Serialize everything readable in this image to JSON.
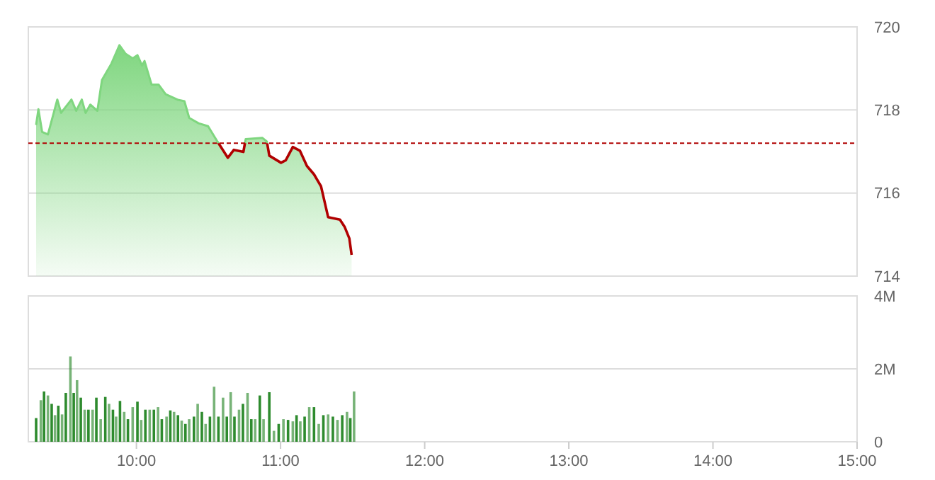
{
  "chart_data": [
    {
      "type": "area",
      "xlim": [
        9.25,
        15
      ],
      "ylim": [
        714,
        720
      ],
      "yticks": [
        714,
        716,
        718,
        720
      ],
      "tick_labels": "y",
      "grid": "y",
      "ref_lines": [
        {
          "axis": "y",
          "value": 717.2,
          "color": "#b00000",
          "line_style": "dashed"
        }
      ],
      "series": [
        {
          "color": "#7fd67f",
          "x": [
            9.304,
            9.32,
            9.346,
            9.386,
            9.451,
            9.477,
            9.549,
            9.582,
            9.621,
            9.647,
            9.68,
            9.729,
            9.761,
            9.827,
            9.882,
            9.925,
            9.974,
            10.007,
            10.039,
            10.056,
            10.105,
            10.154,
            10.203,
            10.284,
            10.333,
            10.366,
            10.431,
            10.497,
            10.562,
            10.634,
            10.676,
            10.742,
            10.758,
            10.873,
            10.905,
            10.922,
            11.003,
            11.036,
            11.085,
            11.134,
            11.183,
            11.232,
            11.281,
            11.33,
            11.412,
            11.444,
            11.477,
            11.493
          ],
          "values": [
            717.64,
            718.02,
            717.47,
            717.41,
            718.25,
            717.93,
            718.25,
            717.98,
            718.25,
            717.93,
            718.13,
            717.98,
            718.72,
            719.12,
            719.56,
            719.35,
            719.24,
            719.32,
            719.07,
            719.18,
            718.61,
            718.61,
            718.38,
            718.25,
            718.21,
            717.81,
            717.68,
            717.61,
            717.24,
            716.85,
            717.04,
            716.99,
            717.3,
            717.33,
            717.24,
            716.9,
            716.73,
            716.79,
            717.11,
            717.02,
            716.65,
            716.45,
            716.16,
            715.42,
            715.36,
            715.19,
            714.91,
            714.51
          ]
        }
      ]
    },
    {
      "type": "bar",
      "xlim": [
        9.25,
        15
      ],
      "xticks": [
        {
          "value": 10,
          "label": "10:00"
        },
        {
          "value": 11,
          "label": "11:00"
        },
        {
          "value": 12,
          "label": "12:00"
        },
        {
          "value": 13,
          "label": "13:00"
        },
        {
          "value": 14,
          "label": "14:00"
        },
        {
          "value": 15,
          "label": "15:00"
        }
      ],
      "ylim": [
        0,
        4
      ],
      "yticks": [
        0,
        {
          "value": 2,
          "label": "2M"
        },
        {
          "value": 4,
          "label": "4M"
        }
      ],
      "grid": "y",
      "series": [
        {
          "color": "#2e8b2e",
          "x": [
            9.304,
            9.337,
            9.359,
            9.386,
            9.412,
            9.435,
            9.458,
            9.484,
            9.51,
            9.542,
            9.565,
            9.588,
            9.614,
            9.641,
            9.667,
            9.696,
            9.722,
            9.752,
            9.784,
            9.81,
            9.837,
            9.859,
            9.886,
            9.915,
            9.941,
            9.974,
            10.007,
            10.033,
            10.062,
            10.092,
            10.121,
            10.15,
            10.176,
            10.209,
            10.235,
            10.261,
            10.288,
            10.314,
            10.34,
            10.366,
            10.399,
            10.425,
            10.454,
            10.48,
            10.51,
            10.539,
            10.569,
            10.601,
            10.627,
            10.654,
            10.68,
            10.712,
            10.739,
            10.771,
            10.797,
            10.824,
            10.856,
            10.882,
            10.922,
            10.954,
            10.987,
            11.02,
            11.052,
            11.085,
            11.111,
            11.137,
            11.167,
            11.199,
            11.232,
            11.265,
            11.297,
            11.33,
            11.363,
            11.395,
            11.428,
            11.461,
            11.484,
            11.51
          ],
          "values": [
            0.65,
            1.14,
            1.38,
            1.27,
            1.04,
            0.73,
            0.99,
            0.75,
            1.34,
            2.34,
            1.34,
            1.69,
            1.21,
            0.88,
            0.88,
            0.88,
            1.21,
            0.62,
            1.23,
            1.04,
            0.88,
            0.69,
            1.12,
            0.82,
            0.62,
            0.95,
            1.1,
            0.6,
            0.88,
            0.88,
            0.88,
            0.95,
            0.62,
            0.69,
            0.86,
            0.82,
            0.73,
            0.58,
            0.49,
            0.62,
            0.69,
            1.04,
            0.82,
            0.49,
            0.69,
            1.51,
            0.69,
            1.21,
            0.69,
            1.36,
            0.69,
            0.88,
            1.04,
            1.34,
            0.62,
            0.62,
            1.27,
            0.62,
            1.36,
            0.3,
            0.49,
            0.62,
            0.6,
            0.56,
            0.73,
            0.56,
            0.69,
            0.95,
            0.95,
            0.49,
            0.73,
            0.75,
            0.69,
            0.6,
            0.73,
            0.82,
            0.65,
            1.38
          ]
        }
      ]
    }
  ]
}
